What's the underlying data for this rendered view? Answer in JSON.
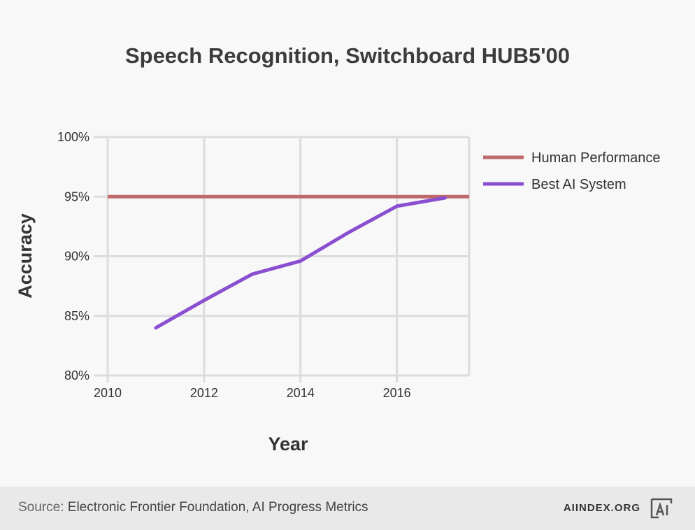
{
  "chart_data": {
    "type": "line",
    "title": "Speech Recognition, Switchboard HUB5'00",
    "xlabel": "Year",
    "ylabel": "Accuracy",
    "xlim": [
      2010,
      2017.5
    ],
    "ylim": [
      80,
      100
    ],
    "x_ticks": [
      2010,
      2012,
      2014,
      2016
    ],
    "x_tick_labels": [
      "2010",
      "2012",
      "2014",
      "2016"
    ],
    "y_ticks": [
      80,
      85,
      90,
      95,
      100
    ],
    "y_tick_labels": [
      "80%",
      "85%",
      "90%",
      "95%",
      "100%"
    ],
    "grid": true,
    "legend_position": "right",
    "series": [
      {
        "name": "Human Performance",
        "color": "#c0696a",
        "x": [
          2010,
          2017.5
        ],
        "y": [
          95,
          95
        ]
      },
      {
        "name": "Best AI System",
        "color": "#8a4fd0",
        "x": [
          2011,
          2012,
          2013,
          2014,
          2015,
          2016,
          2017
        ],
        "y": [
          84.0,
          86.3,
          88.5,
          89.6,
          92.0,
          94.2,
          94.9
        ]
      }
    ]
  },
  "footer": {
    "source_label": "Source:",
    "source_text": "Electronic Frontier Foundation, AI Progress Metrics",
    "site": "AIINDEX.ORG",
    "logo_text": "AI"
  }
}
